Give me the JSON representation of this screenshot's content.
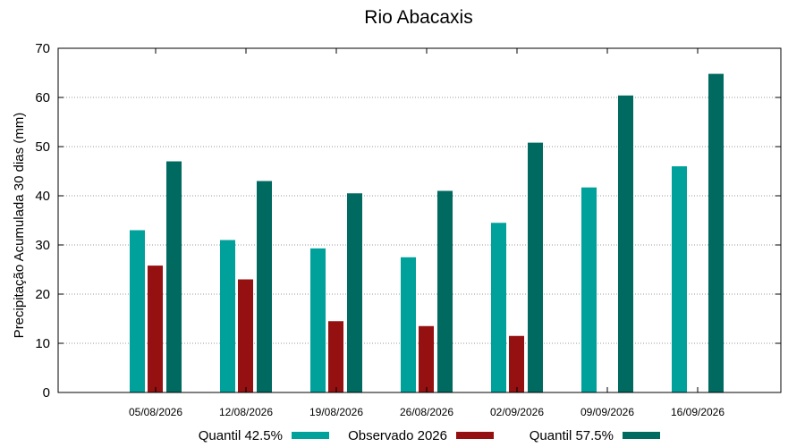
{
  "chart_data": {
    "type": "bar",
    "title": "Rio Abacaxis",
    "ylabel": "Precipitação Acumulada 30 dias (mm)",
    "xlabel": "",
    "ylim": [
      0,
      70
    ],
    "yticks": [
      0,
      10,
      20,
      30,
      40,
      50,
      60,
      70
    ],
    "grid": true,
    "legend_position": "bottom",
    "categories": [
      "05/08/2026",
      "12/08/2026",
      "19/08/2026",
      "26/08/2026",
      "02/09/2026",
      "09/09/2026",
      "16/09/2026"
    ],
    "series": [
      {
        "name": "Quantil 42.5%",
        "color": "#00a09b",
        "values": [
          33.0,
          31.0,
          29.3,
          27.5,
          34.5,
          41.7,
          46.0
        ]
      },
      {
        "name": "Observado 2026",
        "color": "#951010",
        "values": [
          25.8,
          23.0,
          14.5,
          13.5,
          11.5,
          null,
          null
        ]
      },
      {
        "name": "Quantil 57.5%",
        "color": "#006a60",
        "values": [
          47.0,
          43.0,
          40.5,
          41.0,
          50.8,
          60.4,
          64.8
        ]
      }
    ]
  }
}
